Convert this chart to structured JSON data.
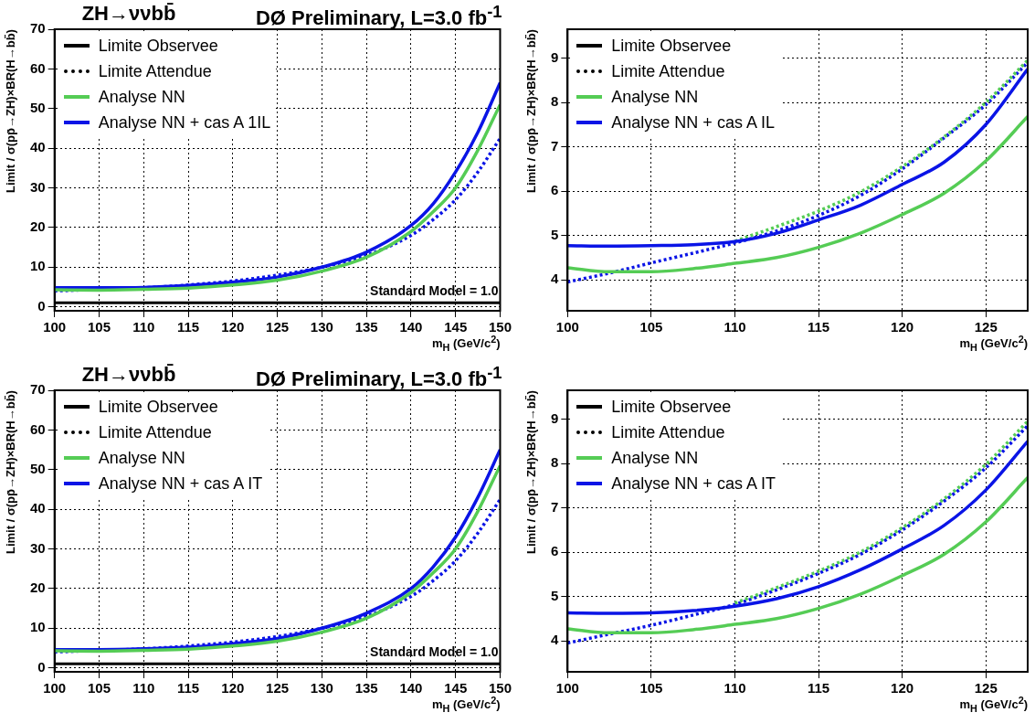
{
  "chart_data": [
    {
      "type": "line",
      "title": "ZH→ννbb̄",
      "subtitle": "DØ Preliminary, L=3.0 fb$^{-1}$",
      "xlabel": "m$_{H}$ (GeV/c$^{2}$)",
      "ylabel": "Limit / σ(pp̄→ZH)×BR(H→bb̄)",
      "xlim": [
        100,
        150
      ],
      "xticks": [
        100,
        105,
        110,
        115,
        120,
        125,
        130,
        135,
        140,
        145,
        150
      ],
      "ylim": [
        -1,
        70
      ],
      "yticks": [
        0,
        10,
        20,
        30,
        40,
        50,
        60,
        70
      ],
      "grid": true,
      "legend": "top left",
      "ref_lines": [
        {
          "axis": "y",
          "value": 1,
          "label": "Standard Model = 1.0",
          "color": "#000000"
        }
      ],
      "x": [
        100,
        105,
        110,
        115,
        120,
        125,
        130,
        135,
        140,
        142.5,
        145,
        147.5,
        150
      ],
      "series": [
        {
          "name": "Limite Observee",
          "color": "#000000",
          "line_style": "solid",
          "values": [
            null,
            null,
            null,
            null,
            null,
            null,
            null,
            null,
            null,
            null,
            null,
            null,
            null
          ]
        },
        {
          "name": "Limite Attendue",
          "color": "#000000",
          "line_style": "dotted",
          "values": [
            null,
            null,
            null,
            null,
            null,
            null,
            null,
            null,
            null,
            null,
            null,
            null,
            null
          ]
        },
        {
          "name": "Analyse NN",
          "color": "#55cc55",
          "line_style": "solid",
          "values": [
            4.3,
            4.2,
            4.4,
            4.7,
            5.5,
            6.7,
            9,
            12.5,
            19,
            24,
            30,
            39.5,
            51
          ]
        },
        {
          "name": "Analyse NN + cas A 1IL",
          "color": "#0a14e6",
          "line_style": "solid",
          "values": [
            4.8,
            4.8,
            4.9,
            5.4,
            6.2,
            7.5,
            10,
            13.8,
            20.5,
            26,
            34,
            44,
            56.5
          ]
        },
        {
          "color": "#0a14e6",
          "line_style": "dotted",
          "values": [
            4,
            4.4,
            4.8,
            5.5,
            6.5,
            8,
            10,
            13,
            18,
            22,
            27,
            34,
            42.5
          ]
        }
      ]
    },
    {
      "type": "line",
      "xlabel": "m$_{H}$ (GeV/c$^{2}$)",
      "ylabel": "Limit / σ(pp̄→ZH)×BR(H→bb̄)",
      "xlim": [
        100,
        127.5
      ],
      "xticks": [
        100,
        105,
        110,
        115,
        120,
        125
      ],
      "ylim": [
        3.3,
        9.65
      ],
      "yticks": [
        4,
        5,
        6,
        7,
        8,
        9
      ],
      "grid": true,
      "legend": "top left",
      "x": [
        100,
        102.5,
        105,
        107.5,
        110,
        112.5,
        115,
        117.5,
        120,
        122.5,
        125,
        127.5
      ],
      "series": [
        {
          "name": "Limite Observee",
          "color": "#000000",
          "line_style": "solid",
          "values": [
            null,
            null,
            null,
            null,
            null,
            null,
            null,
            null,
            null,
            null,
            null,
            null
          ]
        },
        {
          "name": "Limite Attendue",
          "color": "#000000",
          "line_style": "dotted",
          "values": [
            null,
            null,
            null,
            null,
            null,
            null,
            null,
            null,
            null,
            null,
            null,
            null
          ]
        },
        {
          "name": "Analyse NN",
          "color": "#55cc55",
          "line_style": "solid",
          "values": [
            4.27,
            4.18,
            4.18,
            4.25,
            4.37,
            4.5,
            4.73,
            5.05,
            5.47,
            5.95,
            6.68,
            7.68
          ]
        },
        {
          "name": "Analyse NN + cas A IL",
          "color": "#0a14e6",
          "line_style": "solid",
          "values": [
            4.77,
            4.76,
            4.77,
            4.79,
            4.86,
            5.05,
            5.35,
            5.68,
            6.15,
            6.65,
            7.5,
            8.75
          ]
        },
        {
          "color": "#55cc55",
          "line_style": "dotted",
          "values": [
            null,
            null,
            null,
            null,
            4.87,
            5.2,
            5.55,
            5.98,
            6.55,
            7.22,
            8,
            8.95
          ]
        },
        {
          "color": "#0a14e6",
          "line_style": "dotted",
          "values": [
            3.95,
            4.15,
            4.38,
            4.6,
            4.83,
            5.1,
            5.45,
            5.9,
            6.5,
            7.2,
            7.95,
            8.9
          ]
        }
      ]
    },
    {
      "type": "line",
      "title": "ZH→ννbb̄",
      "subtitle": "DØ Preliminary, L=3.0 fb$^{-1}$",
      "xlabel": "m$_{H}$ (GeV/c$^{2}$)",
      "ylabel": "Limit / σ(pp̄→ZH)×BR(H→bb̄)",
      "xlim": [
        100,
        150
      ],
      "xticks": [
        100,
        105,
        110,
        115,
        120,
        125,
        130,
        135,
        140,
        145,
        150
      ],
      "ylim": [
        -1,
        70
      ],
      "yticks": [
        0,
        10,
        20,
        30,
        40,
        50,
        60,
        70
      ],
      "grid": true,
      "legend": "top left",
      "ref_lines": [
        {
          "axis": "y",
          "value": 1,
          "label": "Standard Model = 1.0",
          "color": "#000000"
        }
      ],
      "x": [
        100,
        105,
        110,
        115,
        120,
        125,
        130,
        135,
        140,
        142.5,
        145,
        147.5,
        150
      ],
      "series": [
        {
          "name": "Limite Observee",
          "color": "#000000",
          "line_style": "solid",
          "values": [
            null,
            null,
            null,
            null,
            null,
            null,
            null,
            null,
            null,
            null,
            null,
            null,
            null
          ]
        },
        {
          "name": "Limite Attendue",
          "color": "#000000",
          "line_style": "dotted",
          "values": [
            null,
            null,
            null,
            null,
            null,
            null,
            null,
            null,
            null,
            null,
            null,
            null,
            null
          ]
        },
        {
          "name": "Analyse NN",
          "color": "#55cc55",
          "line_style": "solid",
          "values": [
            4.3,
            4.2,
            4.4,
            4.7,
            5.5,
            6.7,
            9,
            12.5,
            19,
            24,
            30,
            39.5,
            51
          ]
        },
        {
          "name": "Analyse NN + cas A IT",
          "color": "#0a14e6",
          "line_style": "solid",
          "values": [
            4.6,
            4.6,
            4.8,
            5.2,
            6.1,
            7.4,
            10,
            13.8,
            20,
            25.5,
            33,
            43,
            55
          ]
        },
        {
          "color": "#0a14e6",
          "line_style": "dotted",
          "values": [
            4,
            4.4,
            4.8,
            5.5,
            6.5,
            7.9,
            10,
            13,
            18,
            22,
            27,
            34,
            42.5
          ]
        }
      ]
    },
    {
      "type": "line",
      "xlabel": "m$_{H}$ (GeV/c$^{2}$)",
      "ylabel": "Limit / σ(pp̄→ZH)×BR(H→bb̄)",
      "xlim": [
        100,
        127.5
      ],
      "xticks": [
        100,
        105,
        110,
        115,
        120,
        125
      ],
      "ylim": [
        3.3,
        9.65
      ],
      "yticks": [
        4,
        5,
        6,
        7,
        8,
        9
      ],
      "grid": true,
      "legend": "top left",
      "x": [
        100,
        102.5,
        105,
        107.5,
        110,
        112.5,
        115,
        117.5,
        120,
        122.5,
        125,
        127.5
      ],
      "series": [
        {
          "name": "Limite Observee",
          "color": "#000000",
          "line_style": "solid",
          "values": [
            null,
            null,
            null,
            null,
            null,
            null,
            null,
            null,
            null,
            null,
            null,
            null
          ]
        },
        {
          "name": "Limite Attendue",
          "color": "#000000",
          "line_style": "dotted",
          "values": [
            null,
            null,
            null,
            null,
            null,
            null,
            null,
            null,
            null,
            null,
            null,
            null
          ]
        },
        {
          "name": "Analyse NN",
          "color": "#55cc55",
          "line_style": "solid",
          "values": [
            4.27,
            4.18,
            4.18,
            4.25,
            4.37,
            4.5,
            4.73,
            5.05,
            5.47,
            5.95,
            6.68,
            7.68
          ]
        },
        {
          "name": "Analyse NN + cas A IT",
          "color": "#0a14e6",
          "line_style": "solid",
          "values": [
            4.63,
            4.62,
            4.63,
            4.68,
            4.78,
            4.95,
            5.22,
            5.6,
            6.07,
            6.6,
            7.4,
            8.5
          ]
        },
        {
          "color": "#55cc55",
          "line_style": "dotted",
          "values": [
            null,
            null,
            null,
            null,
            4.85,
            5.2,
            5.57,
            6,
            6.55,
            7.2,
            7.98,
            8.95
          ]
        },
        {
          "color": "#0a14e6",
          "line_style": "dotted",
          "values": [
            3.95,
            4.15,
            4.35,
            4.58,
            4.82,
            5.15,
            5.52,
            5.95,
            6.5,
            7.15,
            7.9,
            8.85
          ]
        }
      ]
    }
  ]
}
